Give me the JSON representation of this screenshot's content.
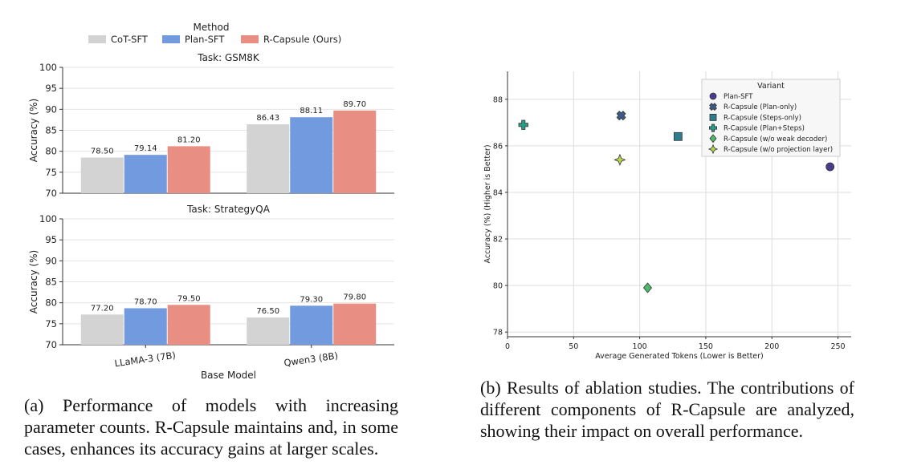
{
  "chart_data": [
    {
      "type": "bar",
      "legend": {
        "title": "Method",
        "placement": "top-center",
        "entries": [
          "CoT-SFT",
          "Plan-SFT",
          "R-Capsule (Ours)"
        ]
      },
      "xlabel": "Base Model",
      "categories": [
        "LLaMA-3 (7B)",
        "Qwen3 (8B)"
      ],
      "colors": [
        "#d3d3d3",
        "#729ade",
        "#e88e82"
      ],
      "panels": [
        {
          "title": "Task: GSM8K",
          "ylabel": "Accuracy (%)",
          "ylim": [
            70,
            100
          ],
          "yticks": [
            70,
            75,
            80,
            85,
            90,
            95,
            100
          ],
          "series": [
            {
              "name": "CoT-SFT",
              "values": [
                78.5,
                86.43
              ],
              "labels": [
                "78.50",
                "86.43"
              ]
            },
            {
              "name": "Plan-SFT",
              "values": [
                79.14,
                88.11
              ],
              "labels": [
                "79.14",
                "88.11"
              ]
            },
            {
              "name": "R-Capsule (Ours)",
              "values": [
                81.2,
                89.7
              ],
              "labels": [
                "81.20",
                "89.70"
              ]
            }
          ]
        },
        {
          "title": "Task: StrategyQA",
          "ylabel": "Accuracy (%)",
          "ylim": [
            70,
            100
          ],
          "yticks": [
            70,
            75,
            80,
            85,
            90,
            95,
            100
          ],
          "series": [
            {
              "name": "CoT-SFT",
              "values": [
                77.2,
                76.5
              ],
              "labels": [
                "77.20",
                "76.50"
              ]
            },
            {
              "name": "Plan-SFT",
              "values": [
                78.7,
                79.3
              ],
              "labels": [
                "78.70",
                "79.30"
              ]
            },
            {
              "name": "R-Capsule (Ours)",
              "values": [
                79.5,
                79.8
              ],
              "labels": [
                "79.50",
                "79.80"
              ]
            }
          ]
        }
      ],
      "grid": true
    },
    {
      "type": "scatter",
      "xlabel": "Average Generated Tokens (Lower is Better)",
      "ylabel": "Accuracy (%) (Higher is Better)",
      "xlim": [
        0,
        260
      ],
      "ylim": [
        77.8,
        89.2
      ],
      "xticks": [
        0,
        50,
        100,
        150,
        200,
        250
      ],
      "yticks": [
        78,
        80,
        82,
        84,
        86,
        88
      ],
      "grid": true,
      "legend": {
        "title": "Variant",
        "placement": "top-right"
      },
      "series": [
        {
          "name": "Plan-SFT",
          "marker": "circle",
          "color": "#4b3b8f",
          "x": 244,
          "y": 85.1
        },
        {
          "name": "R-Capsule (Plan-only)",
          "marker": "x",
          "color": "#3b5a86",
          "x": 86,
          "y": 87.3
        },
        {
          "name": "R-Capsule (Steps-only)",
          "marker": "square",
          "color": "#2e7d8c",
          "x": 129,
          "y": 86.4
        },
        {
          "name": "R-Capsule (Plan+Steps)",
          "marker": "plus",
          "color": "#2a9d8a",
          "x": 12,
          "y": 86.9
        },
        {
          "name": "R-Capsule (w/o weak decoder)",
          "marker": "diamond",
          "color": "#4cb86a",
          "x": 106,
          "y": 79.9
        },
        {
          "name": "R-Capsule (w/o projection layer)",
          "marker": "star",
          "color": "#b8d84a",
          "x": 85,
          "y": 85.4
        }
      ]
    }
  ],
  "captions": {
    "a": "(a) Performance of models with increasing parameter counts. R-Capsule maintains and, in some cases, enhances its accuracy gains at larger scales.",
    "b": "(b) Results of ablation studies. The contributions of different components of R-Capsule are analyzed, showing their impact on overall performance."
  }
}
